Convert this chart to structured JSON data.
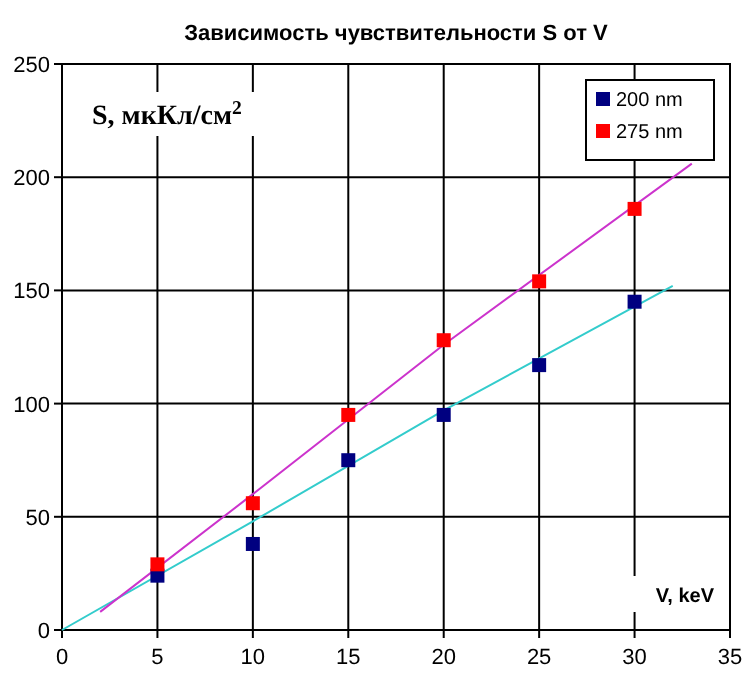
{
  "chart_data": {
    "type": "scatter",
    "title": "Зависимость чувствительности S от V",
    "xlabel": "V, keV",
    "ylabel": "S, мкКл/см$^{2}$",
    "xlim": [
      0,
      35
    ],
    "xticks": [
      0,
      5,
      10,
      15,
      20,
      25,
      30,
      35
    ],
    "ylim": [
      0,
      250
    ],
    "yticks": [
      0,
      50,
      100,
      150,
      200,
      250
    ],
    "grid": true,
    "legend": "top right",
    "marker": "square",
    "series": [
      {
        "type": "line",
        "marker": "none",
        "color": "#33cccc",
        "x": [
          0,
          10,
          20,
          32
        ],
        "values": [
          0,
          48,
          97,
          152
        ]
      },
      {
        "type": "line",
        "marker": "none",
        "color": "#cc33cc",
        "x": [
          2,
          10,
          20,
          33
        ],
        "values": [
          8,
          60,
          126,
          206
        ]
      },
      {
        "name": "200 nm",
        "color": "#000080",
        "x": [
          5,
          10,
          15,
          20,
          25,
          30
        ],
        "values": [
          24,
          38,
          75,
          95,
          117,
          145
        ]
      },
      {
        "name": "275 nm",
        "color": "#ff0000",
        "x": [
          5,
          10,
          15,
          20,
          25,
          30
        ],
        "values": [
          29,
          56,
          95,
          128,
          154,
          186
        ]
      }
    ]
  }
}
